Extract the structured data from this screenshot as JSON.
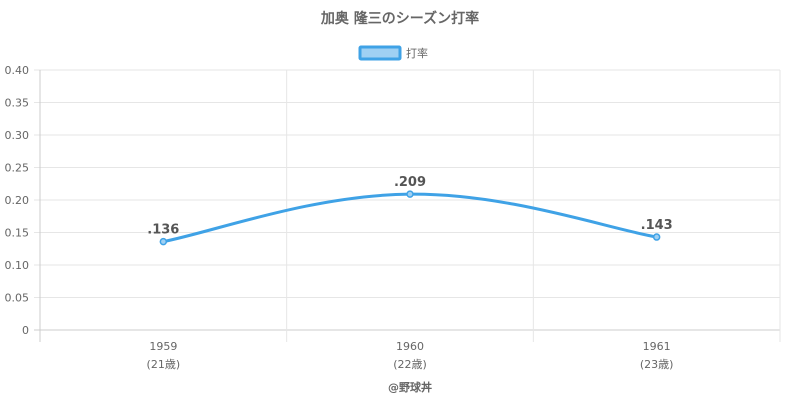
{
  "chart_data": {
    "type": "line",
    "title": "加奥 隆三のシーズン打率",
    "x": [
      "1959",
      "1960",
      "1961"
    ],
    "x_sublabels": [
      "(21歳)",
      "(22歳)",
      "(23歳)"
    ],
    "series": [
      {
        "name": "打率",
        "values": [
          0.136,
          0.209,
          0.143
        ],
        "labels": [
          ".136",
          ".209",
          ".143"
        ]
      }
    ],
    "ylim": [
      0,
      0.4
    ],
    "yticks": [
      "0",
      "0.05",
      "0.10",
      "0.15",
      "0.20",
      "0.25",
      "0.30",
      "0.35",
      "0.40"
    ],
    "ytick_values": [
      0,
      0.05,
      0.1,
      0.15,
      0.2,
      0.25,
      0.3,
      0.35,
      0.4
    ],
    "grid": true,
    "legend_position": "top-center",
    "colors": {
      "line": "#3fa2e6",
      "fill": "#9fd0f3",
      "grid": "#e6e6e6",
      "axis": "#cccccc",
      "text": "#666666"
    }
  },
  "credit": "@野球丼"
}
